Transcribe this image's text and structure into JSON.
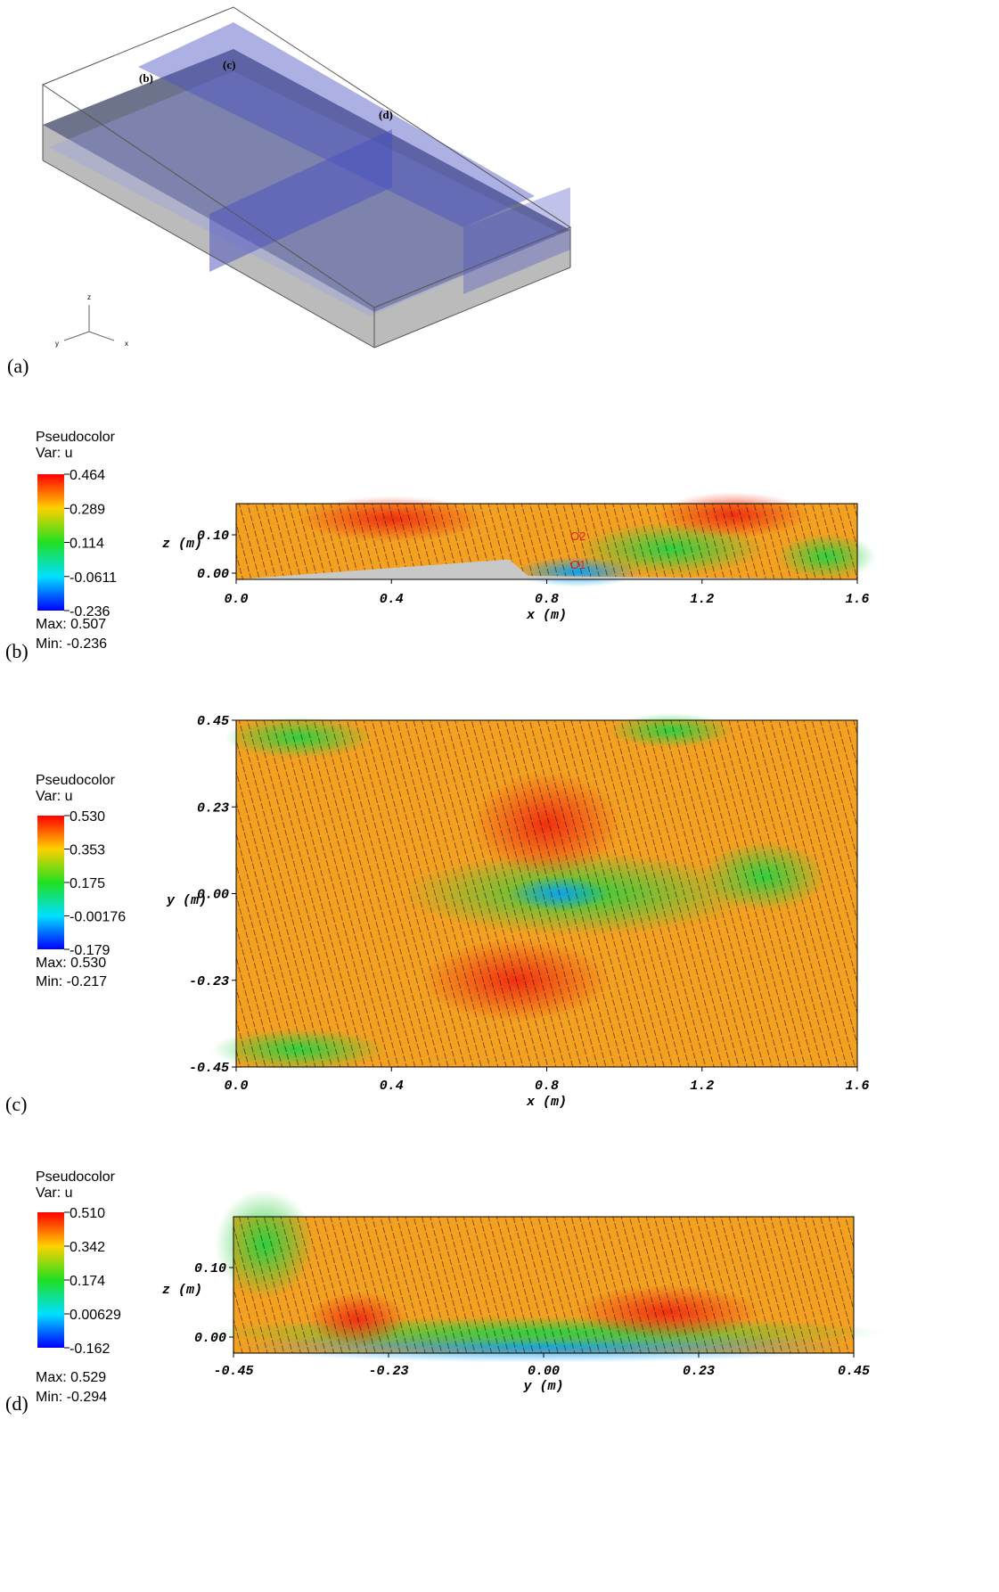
{
  "panels": [
    {
      "label": "(a)",
      "annotations": [
        "(b)",
        "(c)",
        "(d)"
      ],
      "axes": [
        "z",
        "y",
        "x"
      ]
    },
    {
      "label": "(b)",
      "legend": {
        "title": "Pseudocolor",
        "variable": "Var: u",
        "ticks": [
          "0.464",
          "0.289",
          "0.114",
          "-0.0611",
          "-0.236"
        ],
        "max": "Max:  0.507",
        "min": "Min: -0.236"
      },
      "y_label": "z  (m)",
      "x_label": "x  (m)",
      "y_ticks": [
        "0.10",
        "0.00"
      ],
      "x_ticks": [
        "0.0",
        "0.4",
        "0.8",
        "1.2",
        "1.6"
      ],
      "markers": [
        "O2",
        "O1"
      ]
    },
    {
      "label": "(c)",
      "legend": {
        "title": "Pseudocolor",
        "variable": "Var: u",
        "ticks": [
          "0.530",
          "0.353",
          "0.175",
          "-0.00176",
          "-0.179"
        ],
        "max": "Max:  0.530",
        "min": "Min: -0.217"
      },
      "y_label": "y  (m)",
      "x_label": "x  (m)",
      "y_ticks": [
        "0.45",
        "0.23",
        "0.00",
        "-0.23",
        "-0.45"
      ],
      "x_ticks": [
        "0.0",
        "0.4",
        "0.8",
        "1.2",
        "1.6"
      ]
    },
    {
      "label": "(d)",
      "legend": {
        "title": "Pseudocolor",
        "variable": "Var: u",
        "ticks": [
          "0.510",
          "0.342",
          "0.174",
          "0.00629",
          "-0.162"
        ],
        "max": "Max:  0.529",
        "min": "Min: -0.294"
      },
      "y_label": "z  (m)",
      "x_label": "y  (m)",
      "y_ticks": [
        "0.10",
        "0.00"
      ],
      "x_ticks": [
        "-0.45",
        "-0.23",
        "0.00",
        "0.23",
        "0.45"
      ]
    }
  ]
}
